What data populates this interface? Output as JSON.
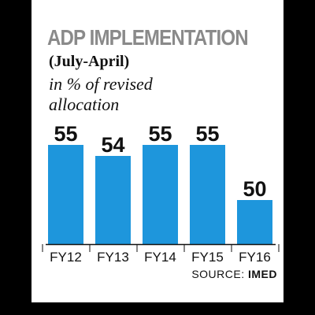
{
  "colors": {
    "bar": "#1e96dc",
    "title": "#8a8a8a",
    "text": "#111111",
    "panel": "#ffffff",
    "frame": "#000000"
  },
  "chart_data": {
    "type": "bar",
    "title": "ADP IMPLEMENTATION",
    "subtitle": "(July-April)",
    "ylabel": "in % of revised allocation",
    "categories": [
      "FY12",
      "FY13",
      "FY14",
      "FY15",
      "FY16"
    ],
    "values": [
      55,
      54,
      55,
      55,
      50
    ],
    "data_labels": [
      "55",
      "54",
      "55",
      "55",
      "50"
    ],
    "ylim": [
      46,
      56.5
    ],
    "grid": false,
    "legend": "none"
  },
  "source": {
    "label": "SOURCE:",
    "name": "IMED"
  }
}
